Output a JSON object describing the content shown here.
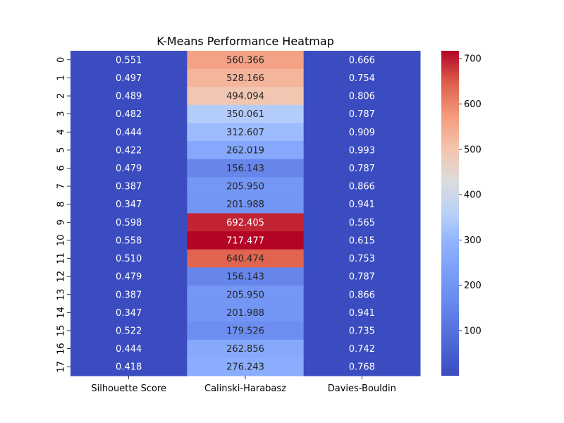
{
  "chart_data": {
    "type": "heatmap",
    "title": "K-Means Performance Heatmap",
    "xlabel": "",
    "ylabel": "",
    "columns": [
      "Silhouette Score",
      "Calinski-Harabasz",
      "Davies-Bouldin"
    ],
    "rows": [
      "0",
      "1",
      "2",
      "3",
      "4",
      "5",
      "6",
      "7",
      "8",
      "9",
      "10",
      "11",
      "12",
      "13",
      "14",
      "15",
      "16",
      "17"
    ],
    "values": [
      [
        0.551,
        560.366,
        0.666
      ],
      [
        0.497,
        528.166,
        0.754
      ],
      [
        0.489,
        494.094,
        0.806
      ],
      [
        0.482,
        350.061,
        0.787
      ],
      [
        0.444,
        312.607,
        0.909
      ],
      [
        0.422,
        262.019,
        0.993
      ],
      [
        0.479,
        156.143,
        0.787
      ],
      [
        0.387,
        205.95,
        0.866
      ],
      [
        0.347,
        201.988,
        0.941
      ],
      [
        0.598,
        692.405,
        0.565
      ],
      [
        0.558,
        717.477,
        0.615
      ],
      [
        0.51,
        640.474,
        0.753
      ],
      [
        0.479,
        156.143,
        0.787
      ],
      [
        0.387,
        205.95,
        0.866
      ],
      [
        0.347,
        201.988,
        0.941
      ],
      [
        0.522,
        179.526,
        0.735
      ],
      [
        0.444,
        262.856,
        0.742
      ],
      [
        0.418,
        276.243,
        0.768
      ]
    ],
    "value_format": "0.000",
    "colormap": "coolwarm",
    "vmin": 0.347,
    "vmax": 717.477,
    "colorbar_ticks": [
      100,
      200,
      300,
      400,
      500,
      600,
      700
    ],
    "grid": false
  }
}
